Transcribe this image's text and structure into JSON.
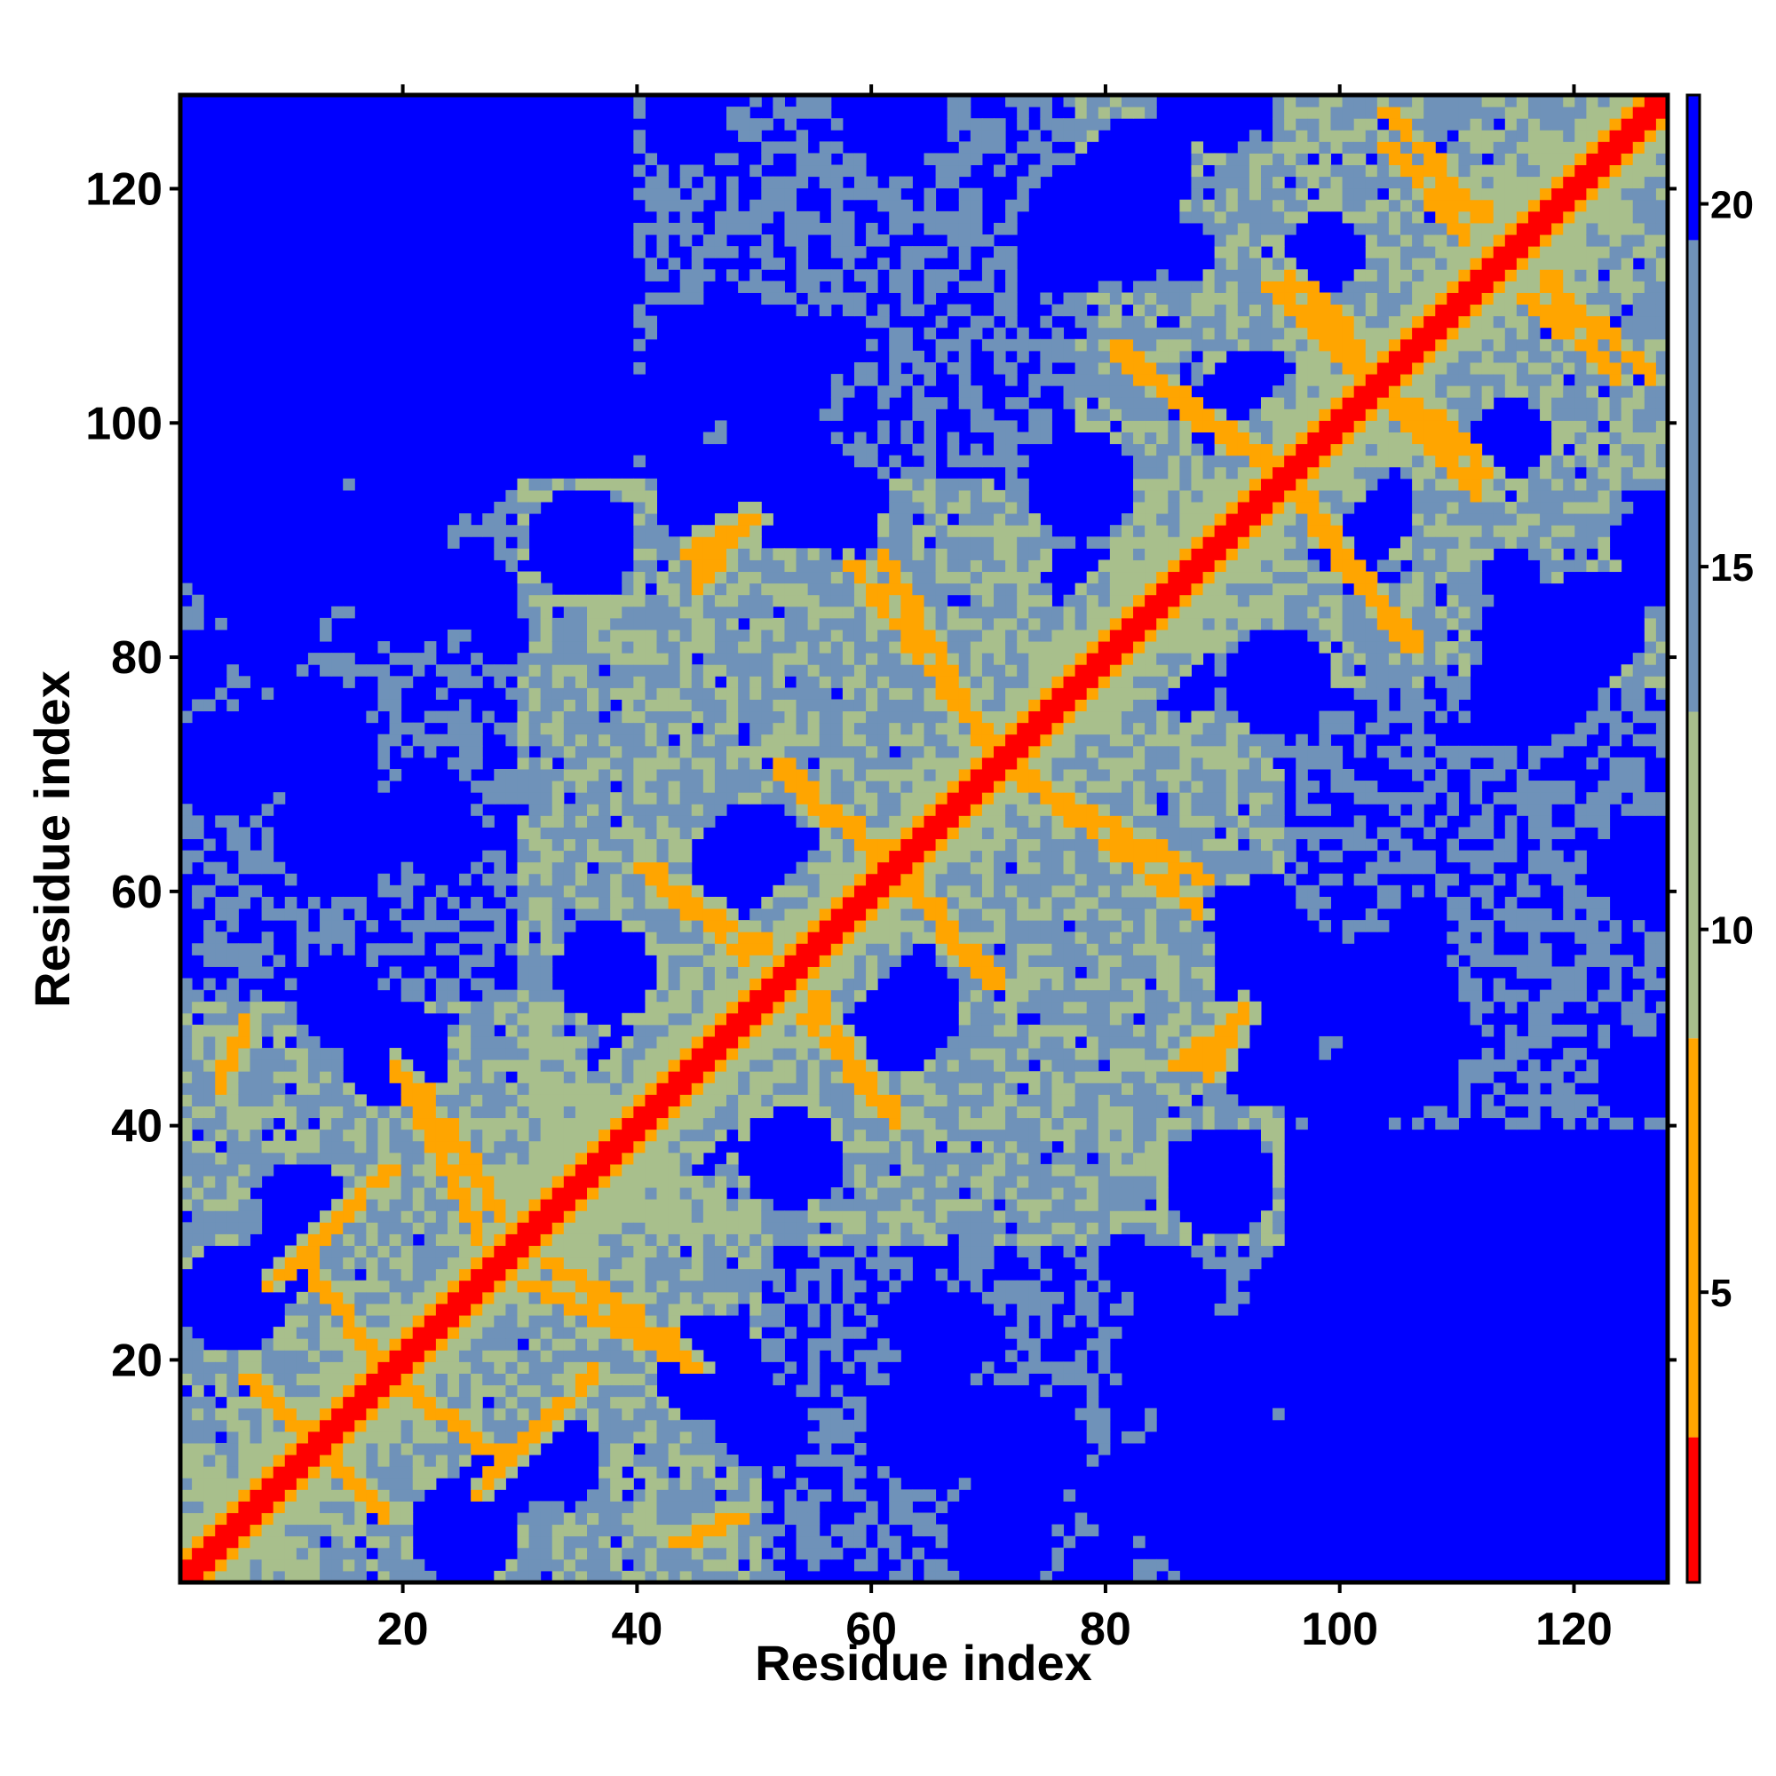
{
  "chart_data": {
    "type": "heatmap",
    "title": "",
    "xlabel": "Residue index",
    "ylabel": "Residue index",
    "n_residues": 128,
    "xlim": [
      1,
      128
    ],
    "ylim": [
      1,
      128
    ],
    "x_ticks": [
      20,
      40,
      60,
      80,
      100,
      120
    ],
    "y_ticks": [
      20,
      40,
      60,
      80,
      100,
      120
    ],
    "colorbar": {
      "ticks": [
        5,
        10,
        15,
        20
      ],
      "range": [
        1,
        21.5
      ],
      "placement": "right"
    },
    "colors": {
      "contact": "#ff0000",
      "near": "#ffa500",
      "mid": "#a8bf8c",
      "far": "#6f92b9",
      "background": "#0000ff"
    },
    "diagonal_value": 1.5,
    "contact_features": [
      {
        "kind": "parallel-strand",
        "start": [
          8,
          26
        ],
        "end": [
          18,
          36
        ]
      },
      {
        "kind": "antiparallel-hairpin",
        "start": [
          6,
          18
        ],
        "end": [
          16,
          8
        ]
      },
      {
        "kind": "antiparallel-hairpin",
        "start": [
          19,
          45
        ],
        "end": [
          28,
          32
        ]
      },
      {
        "kind": "antiparallel-hairpin",
        "start": [
          30,
          26
        ],
        "end": [
          44,
          19
        ]
      },
      {
        "kind": "antiparallel-hairpin",
        "start": [
          18,
          18
        ],
        "end": [
          28,
          11
        ]
      },
      {
        "kind": "antiparallel-hairpin",
        "start": [
          41,
          61
        ],
        "end": [
          52,
          54
        ]
      },
      {
        "kind": "antiparallel-hairpin",
        "start": [
          54,
          49
        ],
        "end": [
          62,
          40
        ]
      },
      {
        "kind": "antiparallel-hairpin",
        "start": [
          53,
          69
        ],
        "end": [
          62,
          62
        ]
      },
      {
        "kind": "antiparallel-hairpin",
        "start": [
          58,
          88
        ],
        "end": [
          70,
          72
        ]
      },
      {
        "kind": "antiparallel-hairpin",
        "start": [
          72,
          70
        ],
        "end": [
          88,
          61
        ]
      },
      {
        "kind": "antiparallel-hairpin",
        "start": [
          62,
          61
        ],
        "end": [
          70,
          52
        ]
      },
      {
        "kind": "antiparallel-hairpin",
        "start": [
          82,
          105
        ],
        "end": [
          96,
          95
        ]
      },
      {
        "kind": "antiparallel-hairpin",
        "start": [
          96,
          113
        ],
        "end": [
          103,
          104
        ]
      },
      {
        "kind": "antiparallel-hairpin",
        "start": [
          104,
          102
        ],
        "end": [
          112,
          94
        ]
      },
      {
        "kind": "antiparallel-hairpin",
        "start": [
          98,
          91
        ],
        "end": [
          106,
          81
        ]
      },
      {
        "kind": "antiparallel-hairpin",
        "start": [
          104,
          127
        ],
        "end": [
          112,
          118
        ]
      },
      {
        "kind": "antiparallel-hairpin",
        "start": [
          116,
          111
        ],
        "end": [
          124,
          104
        ]
      },
      {
        "kind": "short-contact",
        "start": [
          44,
          89
        ],
        "end": [
          50,
          92
        ]
      },
      {
        "kind": "short-contact",
        "start": [
          86,
          45
        ],
        "end": [
          91,
          49
        ]
      },
      {
        "kind": "short-contact",
        "start": [
          43,
          4
        ],
        "end": [
          48,
          6
        ]
      }
    ],
    "domains": [
      {
        "from": 1,
        "to": 50,
        "level": "mid"
      },
      {
        "from": 30,
        "to": 95,
        "level": "mid"
      },
      {
        "from": 78,
        "to": 128,
        "level": "mid"
      },
      {
        "from": 1,
        "to": 95,
        "level": "far",
        "region": "lower-left-band"
      },
      {
        "from": 40,
        "to": 128,
        "level": "far",
        "region": "upper-right-band"
      }
    ]
  }
}
